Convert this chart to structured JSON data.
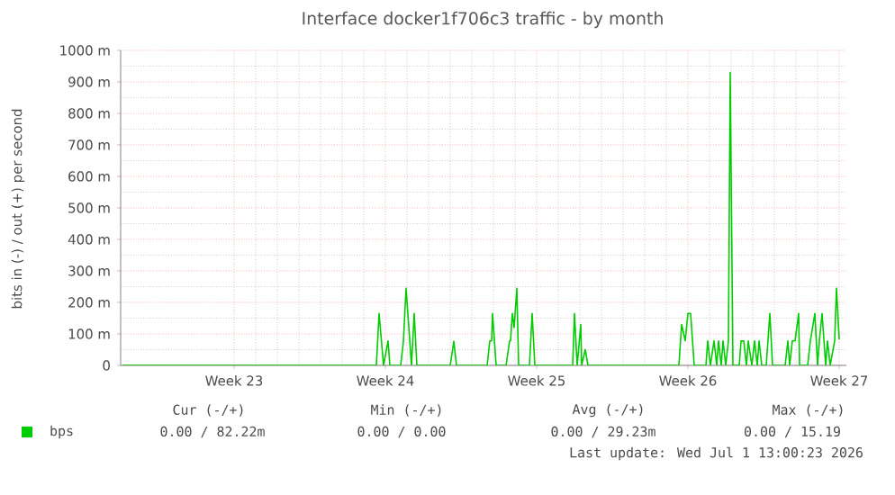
{
  "chart_data": {
    "type": "line",
    "title": "Interface docker1f706c3 traffic - by month",
    "ylabel": "bits in (-) / out (+) per second",
    "xlim": [
      "2026-05-29T07:00",
      "2026-07-01T21:00"
    ],
    "xticks": [
      {
        "value": "2026-06-03T13:00",
        "label": "Week 23"
      },
      {
        "value": "2026-06-10T13:00",
        "label": "Week 24"
      },
      {
        "value": "2026-06-17T13:00",
        "label": "Week 25"
      },
      {
        "value": "2026-06-24T13:00",
        "label": "Week 26"
      },
      {
        "value": "2026-07-01T13:00",
        "label": "Week 27"
      }
    ],
    "ylim": [
      0,
      1000
    ],
    "yticks": [
      0,
      {
        "value": 100,
        "label": "100 m"
      },
      {
        "value": 200,
        "label": "200 m"
      },
      {
        "value": 300,
        "label": "300 m"
      },
      {
        "value": 400,
        "label": "400 m"
      },
      {
        "value": 500,
        "label": "500 m"
      },
      {
        "value": 600,
        "label": "600 m"
      },
      {
        "value": 700,
        "label": "700 m"
      },
      {
        "value": 800,
        "label": "800 m"
      },
      {
        "value": 900,
        "label": "900 m"
      },
      {
        "value": 1000,
        "label": "1000 m"
      }
    ],
    "grid": true,
    "legend": "bottom left",
    "marker": "none",
    "line_style": "solid",
    "series": [
      {
        "name": "bps",
        "color": "#00cc00",
        "x": [
          "2026-05-29T09:00",
          "2026-06-10T03:00",
          "2026-06-10T06:00",
          "2026-06-10T11:00",
          "2026-06-10T16:00",
          "2026-06-10T18:00",
          "2026-06-11T06:00",
          "2026-06-11T09:00",
          "2026-06-11T12:00",
          "2026-06-11T18:00",
          "2026-06-11T21:00",
          "2026-06-12T00:00",
          "2026-06-13T13:00",
          "2026-06-13T17:00",
          "2026-06-13T20:00",
          "2026-06-15T06:00",
          "2026-06-15T09:00",
          "2026-06-15T11:00",
          "2026-06-15T12:00",
          "2026-06-15T16:00",
          "2026-06-16T03:00",
          "2026-06-16T07:00",
          "2026-06-16T08:00",
          "2026-06-16T10:00",
          "2026-06-16T12:00",
          "2026-06-16T15:00",
          "2026-06-16T17:00",
          "2026-06-17T05:00",
          "2026-06-17T08:00",
          "2026-06-17T11:00",
          "2026-06-19T05:00",
          "2026-06-19T07:00",
          "2026-06-19T10:00",
          "2026-06-19T14:00",
          "2026-06-19T15:00",
          "2026-06-19T19:00",
          "2026-06-19T22:00",
          "2026-06-24T03:00",
          "2026-06-24T06:00",
          "2026-06-24T10:00",
          "2026-06-24T13:00",
          "2026-06-24T16:00",
          "2026-06-24T20:00",
          "2026-06-25T09:00",
          "2026-06-25T11:00",
          "2026-06-25T14:00",
          "2026-06-25T18:00",
          "2026-06-25T21:00",
          "2026-06-25T23:00",
          "2026-06-26T02:00",
          "2026-06-26T04:00",
          "2026-06-26T07:00",
          "2026-06-26T10:00",
          "2026-06-26T12:00",
          "2026-06-26T15:00",
          "2026-06-26T22:00",
          "2026-06-27T00:00",
          "2026-06-27T03:00",
          "2026-06-27T06:00",
          "2026-06-27T08:00",
          "2026-06-27T12:00",
          "2026-06-27T15:00",
          "2026-06-27T18:00",
          "2026-06-27T20:00",
          "2026-06-27T23:00",
          "2026-06-28T04:00",
          "2026-06-28T08:00",
          "2026-06-28T11:00",
          "2026-06-29T01:00",
          "2026-06-29T04:00",
          "2026-06-29T06:00",
          "2026-06-29T09:00",
          "2026-06-29T12:00",
          "2026-06-29T16:00",
          "2026-06-29T17:00",
          "2026-06-30T02:00",
          "2026-06-30T05:00",
          "2026-06-30T08:00",
          "2026-06-30T10:00",
          "2026-06-30T13:00",
          "2026-06-30T15:00",
          "2026-06-30T18:00",
          "2026-06-30T22:00",
          "2026-07-01T00:00",
          "2026-07-01T03:00",
          "2026-07-01T08:00",
          "2026-07-01T10:00",
          "2026-07-01T13:00"
        ],
        "values": [
          0,
          0,
          165,
          0,
          78,
          0,
          0,
          75,
          245,
          0,
          165,
          0,
          0,
          76,
          0,
          0,
          78,
          78,
          165,
          0,
          0,
          78,
          78,
          165,
          120,
          245,
          0,
          0,
          165,
          0,
          0,
          165,
          0,
          130,
          0,
          50,
          0,
          0,
          130,
          78,
          165,
          165,
          0,
          0,
          78,
          0,
          78,
          0,
          78,
          0,
          78,
          0,
          78,
          930,
          0,
          0,
          78,
          78,
          0,
          78,
          0,
          78,
          0,
          78,
          0,
          0,
          165,
          0,
          0,
          78,
          0,
          78,
          78,
          165,
          0,
          0,
          78,
          130,
          165,
          0,
          78,
          165,
          0,
          78,
          0,
          78,
          245,
          82
        ]
      }
    ],
    "annotations": [
      "Cur (-/+)",
      "Min (-/+)",
      "Avg (-/+)",
      "Max (-/+)",
      "0.00 / 82.22m",
      "0.00 / 0.00",
      "0.00 / 29.23m",
      "0.00 / 15.19",
      "Last update: Wed Jul 1 13:00:23 2026"
    ]
  }
}
